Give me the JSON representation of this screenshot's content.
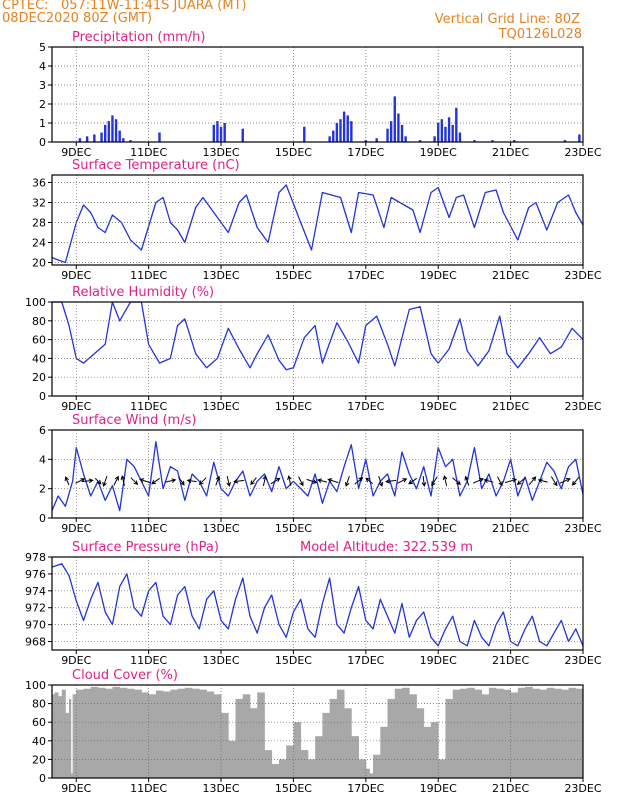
{
  "header": {
    "source": "CPTEC:",
    "location": "057:11W-11:41S  JUARA (MT)",
    "run": "08DEC2020 80Z (GMT)",
    "grid_line": "Vertical Grid Line: 80Z",
    "code": "TQ0126L028",
    "model_altitude": "Model Altitude: 322.539 m"
  },
  "colors": {
    "header": "#e8821e",
    "panel_title": "#e0208a",
    "line": "#2233dd",
    "bar": "#2233dd",
    "cloud": "#a8a8a8"
  },
  "x_axis": {
    "start_day": 8.33,
    "end_day": 23,
    "ticks": [
      9,
      11,
      13,
      15,
      17,
      19,
      21,
      23
    ],
    "tick_labels": [
      "9DEC",
      "11DEC",
      "13DEC",
      "15DEC",
      "17DEC",
      "19DEC",
      "21DEC",
      "23DEC"
    ]
  },
  "chart_data": [
    {
      "type": "bar",
      "title": "Precipitation (mm/h)",
      "ylim": [
        0,
        5
      ],
      "yticks": [
        0,
        1,
        2,
        3,
        4,
        5
      ],
      "grid": true,
      "x": [
        9.1,
        9.3,
        9.5,
        9.7,
        9.8,
        9.9,
        10.0,
        10.1,
        10.2,
        10.3,
        10.5,
        11.3,
        12.8,
        12.9,
        13.0,
        13.1,
        13.6,
        15.3,
        16.0,
        16.1,
        16.2,
        16.3,
        16.4,
        16.5,
        16.6,
        17.0,
        17.3,
        17.6,
        17.7,
        17.8,
        17.9,
        18.0,
        18.1,
        18.5,
        18.9,
        19.0,
        19.1,
        19.2,
        19.3,
        19.4,
        19.5,
        19.6,
        20.0,
        20.5,
        21.1,
        22.5,
        22.9
      ],
      "values": [
        0.2,
        0.3,
        0.4,
        0.5,
        0.9,
        1.1,
        1.4,
        1.2,
        0.6,
        0.2,
        0.1,
        0.5,
        0.9,
        1.1,
        0.8,
        1.0,
        0.7,
        0.8,
        0.3,
        0.6,
        1.0,
        1.2,
        1.6,
        1.4,
        1.1,
        0.1,
        0.2,
        0.7,
        1.1,
        2.4,
        1.5,
        0.9,
        0.3,
        0.1,
        0.3,
        1.0,
        1.2,
        0.8,
        1.3,
        0.9,
        1.8,
        0.5,
        0.1,
        0.1,
        0.1,
        0.1,
        0.4
      ]
    },
    {
      "type": "line",
      "title": "Surface Temperature (nC)",
      "ylim": [
        19.5,
        37.5
      ],
      "yticks": [
        20,
        24,
        28,
        32,
        36
      ],
      "grid": true,
      "x": [
        8.33,
        8.5,
        8.7,
        9.0,
        9.2,
        9.4,
        9.6,
        9.8,
        10.0,
        10.25,
        10.5,
        10.8,
        11.2,
        11.4,
        11.6,
        11.8,
        12.0,
        12.3,
        12.5,
        12.7,
        13.2,
        13.5,
        13.7,
        14.0,
        14.3,
        14.6,
        14.8,
        15.2,
        15.5,
        15.8,
        16.3,
        16.6,
        16.8,
        17.2,
        17.5,
        17.7,
        18.3,
        18.5,
        18.8,
        19.0,
        19.3,
        19.5,
        19.7,
        20.0,
        20.3,
        20.6,
        20.8,
        21.2,
        21.5,
        21.7,
        22.0,
        22.3,
        22.6,
        22.8,
        23.0
      ],
      "values": [
        21,
        20.5,
        20,
        28,
        31.5,
        30,
        27,
        26,
        29.5,
        28,
        24.5,
        22.5,
        32,
        33,
        28,
        26.5,
        24,
        31,
        33,
        31,
        26,
        32,
        33.5,
        27,
        24,
        34,
        35.5,
        28,
        22.5,
        34,
        33,
        26,
        34,
        33.5,
        27,
        33,
        30.5,
        26,
        34,
        35,
        29,
        33,
        33.5,
        27,
        34,
        34.5,
        30,
        24.5,
        31,
        32,
        26.5,
        32,
        33.5,
        30,
        27.5
      ]
    },
    {
      "type": "line",
      "title": "Relative Humidity (%)",
      "ylim": [
        0,
        100
      ],
      "yticks": [
        0,
        20,
        40,
        60,
        80,
        100
      ],
      "grid": true,
      "x": [
        8.33,
        8.6,
        8.8,
        9.0,
        9.2,
        9.5,
        9.8,
        10.0,
        10.2,
        10.5,
        10.8,
        11.0,
        11.3,
        11.6,
        11.8,
        12.0,
        12.3,
        12.6,
        12.9,
        13.2,
        13.5,
        13.8,
        14.0,
        14.3,
        14.6,
        14.8,
        15.0,
        15.3,
        15.6,
        15.8,
        16.2,
        16.5,
        16.8,
        17.0,
        17.3,
        17.6,
        17.8,
        18.2,
        18.5,
        18.8,
        19.0,
        19.3,
        19.6,
        19.8,
        20.1,
        20.4,
        20.7,
        20.9,
        21.2,
        21.5,
        21.8,
        22.1,
        22.4,
        22.7,
        23.0
      ],
      "values": [
        100,
        100,
        75,
        40,
        35,
        45,
        55,
        100,
        80,
        100,
        100,
        55,
        35,
        40,
        75,
        82,
        45,
        30,
        40,
        72,
        50,
        30,
        45,
        65,
        38,
        28,
        30,
        62,
        75,
        35,
        78,
        58,
        35,
        75,
        85,
        55,
        32,
        92,
        95,
        45,
        35,
        50,
        82,
        48,
        32,
        48,
        85,
        45,
        30,
        45,
        62,
        45,
        52,
        72,
        60
      ]
    },
    {
      "type": "line",
      "title": "Surface Wind (m/s)",
      "ylim": [
        0,
        6
      ],
      "yticks": [
        0,
        2,
        4,
        6
      ],
      "grid": true,
      "x": [
        8.33,
        8.5,
        8.7,
        8.9,
        9.0,
        9.2,
        9.4,
        9.6,
        9.8,
        10.0,
        10.2,
        10.4,
        10.6,
        10.8,
        11.0,
        11.2,
        11.4,
        11.6,
        11.8,
        12.0,
        12.2,
        12.4,
        12.6,
        12.8,
        13.0,
        13.2,
        13.4,
        13.6,
        13.8,
        14.0,
        14.2,
        14.4,
        14.6,
        14.8,
        15.0,
        15.2,
        15.4,
        15.6,
        15.8,
        16.0,
        16.2,
        16.4,
        16.6,
        16.8,
        17.0,
        17.2,
        17.4,
        17.6,
        17.8,
        18.0,
        18.2,
        18.4,
        18.6,
        18.8,
        19.0,
        19.2,
        19.4,
        19.6,
        19.8,
        20.0,
        20.2,
        20.4,
        20.6,
        20.8,
        21.0,
        21.2,
        21.4,
        21.6,
        21.8,
        22.0,
        22.2,
        22.4,
        22.6,
        22.8,
        23.0
      ],
      "values": [
        0.5,
        1.5,
        0.8,
        2.5,
        4.8,
        3.0,
        1.5,
        2.5,
        1.2,
        2.2,
        0.5,
        4.0,
        3.5,
        2.5,
        1.5,
        5.2,
        2.0,
        3.5,
        3.2,
        1.2,
        3.0,
        2.5,
        1.5,
        3.8,
        2.0,
        1.5,
        2.5,
        3.2,
        1.5,
        2.5,
        3.0,
        1.8,
        3.5,
        2.0,
        2.5,
        2.0,
        1.5,
        3.0,
        1.0,
        2.5,
        1.8,
        3.5,
        5.0,
        2.0,
        4.0,
        1.5,
        2.5,
        3.0,
        1.5,
        4.5,
        3.0,
        2.0,
        3.5,
        1.5,
        4.8,
        3.5,
        4.0,
        1.5,
        2.5,
        4.8,
        2.0,
        3.0,
        1.5,
        2.5,
        4.0,
        1.5,
        2.8,
        1.2,
        2.5,
        3.8,
        3.2,
        2.0,
        3.5,
        4.0,
        1.6
      ]
    },
    {
      "type": "line",
      "title": "Surface Pressure (hPa)",
      "ylim": [
        967,
        978
      ],
      "yticks": [
        968,
        970,
        972,
        974,
        976,
        978
      ],
      "grid": true,
      "x": [
        8.33,
        8.6,
        8.8,
        9.0,
        9.2,
        9.4,
        9.6,
        9.8,
        10.0,
        10.2,
        10.4,
        10.6,
        10.8,
        11.0,
        11.2,
        11.4,
        11.6,
        11.8,
        12.0,
        12.2,
        12.4,
        12.6,
        12.8,
        13.0,
        13.2,
        13.4,
        13.6,
        13.8,
        14.0,
        14.2,
        14.4,
        14.6,
        14.8,
        15.0,
        15.2,
        15.4,
        15.6,
        15.8,
        16.0,
        16.2,
        16.4,
        16.6,
        16.8,
        17.0,
        17.2,
        17.4,
        17.6,
        17.8,
        18.0,
        18.2,
        18.4,
        18.6,
        18.8,
        19.0,
        19.2,
        19.4,
        19.6,
        19.8,
        20.0,
        20.2,
        20.4,
        20.6,
        20.8,
        21.0,
        21.2,
        21.4,
        21.6,
        21.8,
        22.0,
        22.2,
        22.4,
        22.6,
        22.8,
        23.0
      ],
      "values": [
        976.8,
        977.2,
        975.8,
        972.8,
        970.5,
        973.0,
        975.0,
        971.5,
        970.0,
        974.5,
        976.0,
        972.0,
        971.0,
        974.0,
        975.0,
        971.0,
        970.0,
        973.5,
        974.5,
        971.0,
        969.5,
        973.0,
        974.0,
        970.5,
        969.5,
        973.0,
        975.5,
        971.0,
        969.0,
        972.0,
        973.5,
        970.0,
        968.5,
        971.5,
        973.0,
        969.5,
        968.5,
        972.5,
        975.5,
        970.0,
        969.0,
        972.0,
        974.5,
        970.5,
        969.5,
        973.0,
        971.0,
        969.0,
        972.5,
        968.5,
        970.5,
        971.5,
        968.5,
        967.5,
        969.5,
        971.0,
        968.0,
        967.5,
        970.5,
        968.5,
        967.5,
        970.0,
        971.5,
        968.0,
        967.5,
        969.5,
        971.0,
        968.0,
        967.5,
        969.0,
        970.5,
        968.0,
        969.5,
        967.5
      ]
    },
    {
      "type": "area",
      "title": "Cloud Cover (%)",
      "ylim": [
        0,
        100
      ],
      "yticks": [
        0,
        20,
        40,
        60,
        80,
        100
      ],
      "grid": true,
      "x": [
        8.33,
        8.4,
        8.5,
        8.6,
        8.7,
        8.8,
        8.85,
        8.9,
        9.0,
        9.2,
        9.4,
        9.6,
        9.8,
        10.0,
        10.2,
        10.4,
        10.6,
        10.8,
        11.0,
        11.2,
        11.4,
        11.6,
        11.8,
        12.0,
        12.2,
        12.4,
        12.6,
        12.8,
        13.0,
        13.2,
        13.4,
        13.6,
        13.8,
        14.0,
        14.2,
        14.4,
        14.6,
        14.8,
        15.0,
        15.2,
        15.4,
        15.6,
        15.8,
        16.0,
        16.2,
        16.4,
        16.6,
        16.8,
        17.0,
        17.1,
        17.2,
        17.4,
        17.6,
        17.8,
        18.0,
        18.2,
        18.4,
        18.6,
        18.8,
        19.0,
        19.2,
        19.4,
        19.6,
        19.8,
        20.0,
        20.2,
        20.4,
        20.6,
        20.8,
        21.0,
        21.2,
        21.4,
        21.6,
        21.8,
        22.0,
        22.2,
        22.4,
        22.6,
        22.8,
        23.0
      ],
      "values": [
        90,
        92,
        88,
        95,
        70,
        85,
        5,
        90,
        95,
        96,
        98,
        97,
        96,
        98,
        97,
        96,
        95,
        92,
        90,
        94,
        93,
        95,
        96,
        97,
        96,
        95,
        93,
        90,
        70,
        40,
        85,
        90,
        75,
        92,
        30,
        15,
        20,
        35,
        60,
        30,
        20,
        45,
        70,
        85,
        95,
        75,
        45,
        20,
        10,
        5,
        25,
        55,
        85,
        96,
        97,
        90,
        75,
        55,
        60,
        20,
        85,
        95,
        96,
        97,
        95,
        90,
        97,
        96,
        95,
        92,
        97,
        98,
        96,
        95,
        97,
        96,
        95,
        97,
        96,
        95
      ]
    }
  ],
  "wind_vectors": {
    "x": [
      8.75,
      9.1,
      9.3,
      9.6,
      9.8,
      10.1,
      10.3,
      10.6,
      10.9,
      11.2,
      11.6,
      11.9,
      12.2,
      12.5,
      12.9,
      13.2,
      13.5,
      13.9,
      14.2,
      14.5,
      14.9,
      15.2,
      15.5,
      15.8,
      16.1,
      16.5,
      16.8,
      17.1,
      17.4,
      17.7,
      18.0,
      18.3,
      18.6,
      18.9,
      19.2,
      19.5,
      19.8,
      20.1,
      20.4,
      20.7,
      21.0,
      21.3,
      21.6,
      21.9,
      22.2,
      22.5,
      22.8
    ],
    "u": [
      -0.3,
      0.8,
      1.0,
      0.5,
      -0.3,
      0.4,
      -0.2,
      0.6,
      -0.9,
      -0.7,
      0.9,
      0.5,
      -0.8,
      -0.6,
      0.3,
      0.2,
      -0.9,
      -0.5,
      0.2,
      0.8,
      -0.2,
      0.4,
      0.9,
      -0.8,
      -0.9,
      -0.3,
      0.7,
      -0.6,
      0.3,
      -0.9,
      0.8,
      -0.7,
      0.1,
      -0.5,
      -0.2,
      0.7,
      -0.3,
      0.9,
      -0.8,
      0.4,
      1.0,
      -0.7,
      0.6,
      -0.8,
      0.5,
      0.9,
      -0.6
    ],
    "v": [
      0.7,
      0.4,
      0.1,
      -0.5,
      -0.9,
      0.8,
      0.9,
      -0.6,
      0.3,
      -0.5,
      0.2,
      -0.7,
      0.1,
      -0.6,
      0.8,
      -0.9,
      -0.1,
      -0.6,
      0.9,
      0.5,
      0.9,
      -0.8,
      -0.3,
      0.2,
      0.3,
      -0.9,
      0.6,
      0.5,
      -0.9,
      -0.1,
      0.4,
      -0.5,
      -0.9,
      -0.8,
      0.9,
      -0.6,
      0.8,
      0.4,
      0.2,
      -0.8,
      0.3,
      -0.6,
      0.7,
      0.2,
      -0.8,
      0.4,
      -0.7
    ]
  }
}
